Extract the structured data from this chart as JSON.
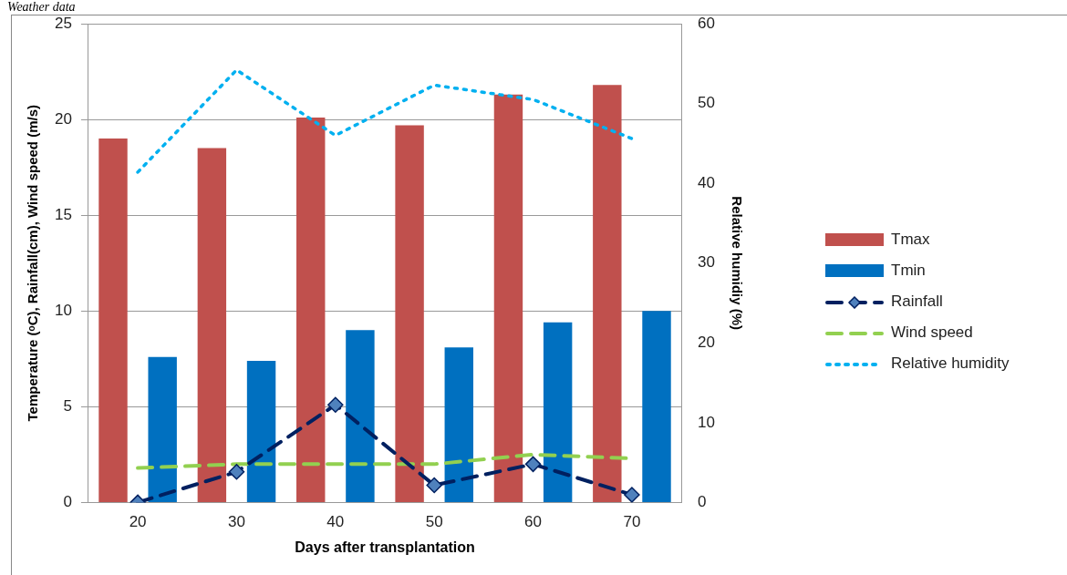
{
  "chart_data": {
    "type": "bar",
    "title": "Weather data",
    "xlabel": "Days after transplantation",
    "ylabel": "Temperature (ᵒC), Rainfall(cm), Wind speed (m/s)",
    "y2label": "Relative humidiy (%)",
    "categories": [
      "20",
      "30",
      "40",
      "50",
      "60",
      "70"
    ],
    "series": [
      {
        "name": "Tmax",
        "color": "#c0504d",
        "values": [
          19.0,
          18.5,
          20.1,
          19.7,
          21.3,
          21.8
        ]
      },
      {
        "name": "Tmin",
        "color": "#0070c0",
        "values": [
          7.6,
          7.4,
          9.0,
          8.1,
          9.4,
          10.0
        ]
      },
      {
        "name": "Rainfall",
        "type": "line",
        "color": "#002060",
        "marker": "diamond",
        "line_style": "dashed",
        "values": [
          0,
          1.6,
          5.1,
          0.9,
          2.0,
          0.4
        ]
      },
      {
        "name": "Wind speed",
        "type": "line",
        "color": "#92d050",
        "line_style": "dashed",
        "values": [
          1.8,
          2.0,
          2.0,
          2.0,
          2.5,
          2.3
        ]
      },
      {
        "name": "Relative humidity",
        "type": "line",
        "color": "#00b0f0",
        "line_style": "dotted",
        "axis": "y2",
        "values": [
          41.4,
          54.2,
          46.0,
          52.3,
          50.5,
          45.6
        ]
      }
    ],
    "ylim": [
      0,
      25
    ],
    "yticks": [
      0,
      5,
      10,
      15,
      20,
      25
    ],
    "y2lim": [
      0,
      60
    ],
    "y2ticks": [
      0,
      10,
      20,
      30,
      40,
      50,
      60
    ],
    "grid": "y",
    "legend": "right"
  }
}
